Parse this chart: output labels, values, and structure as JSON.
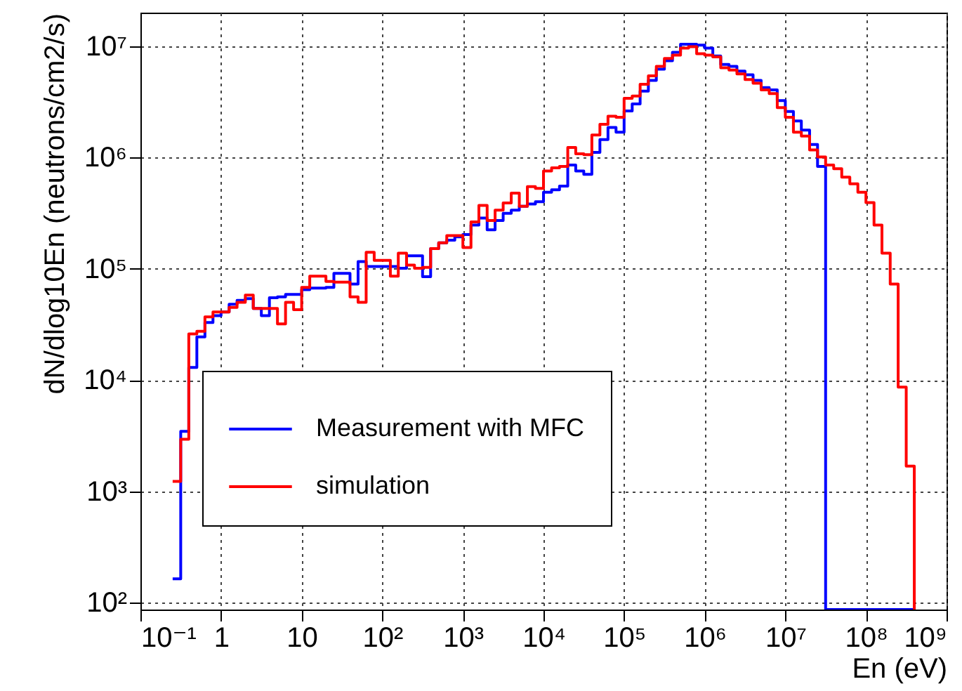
{
  "chart_data": {
    "type": "histogram",
    "xlabel": "En (eV)",
    "ylabel": "dN/dlog10En (neutrons/cm2/s)",
    "log": "xy",
    "grid": true,
    "legend": "bottom",
    "line_style": "solid",
    "xlim": [
      0.1,
      1000000000
    ],
    "ylim": [
      87,
      20000000
    ],
    "xticks": [
      {
        "value": 0.1,
        "label": "10⁻¹"
      },
      1,
      10,
      {
        "value": 100,
        "label": "10²"
      },
      {
        "value": 1000,
        "label": "10³"
      },
      {
        "value": 10000,
        "label": "10⁴"
      },
      {
        "value": 100000,
        "label": "10⁵"
      },
      {
        "value": 1000000,
        "label": "10⁶"
      },
      {
        "value": 10000000,
        "label": "10⁷"
      },
      {
        "value": 100000000,
        "label": "10⁸"
      },
      {
        "value": 1000000000,
        "label": "10⁹"
      }
    ],
    "yticks": [
      {
        "value": 100,
        "label": "10²"
      },
      {
        "value": 1000,
        "label": "10³"
      },
      {
        "value": 10000,
        "label": "10⁴"
      },
      {
        "value": 100000,
        "label": "10⁵"
      },
      {
        "value": 1000000,
        "label": "10⁶"
      },
      {
        "value": 10000000,
        "label": "10⁷"
      }
    ],
    "bins": [
      0.251,
      0.316,
      0.398,
      0.501,
      0.631,
      0.794,
      1,
      1.26,
      1.58,
      2,
      2.51,
      3.16,
      3.98,
      5.01,
      6.31,
      7.94,
      10,
      12.6,
      15.8,
      20,
      25.1,
      31.6,
      39.8,
      50.1,
      63.1,
      79.4,
      100,
      126,
      158,
      200,
      251,
      316,
      398,
      501,
      631,
      794,
      1000,
      1260,
      1580,
      2000,
      2510,
      3160,
      3980,
      5010,
      6310,
      7940,
      10000,
      12600,
      15800,
      20000,
      25100,
      31600,
      39800,
      50100,
      63100,
      79400,
      100000,
      126000,
      158000,
      200000,
      251000,
      316000,
      398000,
      501000,
      631000,
      794000,
      1000000,
      1260000,
      1580000,
      2000000,
      2510000,
      3160000,
      3980000,
      5010000,
      6310000,
      7940000,
      10000000,
      12600000,
      15800000,
      20000000,
      25100000,
      31600000,
      39800000,
      50100000,
      63100000,
      79400000,
      100000000,
      126000000,
      158000000,
      200000000,
      251000000,
      316000000,
      398000000
    ],
    "series": [
      {
        "name": "Measurement with MFC",
        "color": "#0000ff",
        "values": [
          164,
          3470,
          13000,
          24500,
          33000,
          38000,
          41000,
          48000,
          52000,
          54000,
          44000,
          38000,
          55000,
          56000,
          59000,
          59000,
          65000,
          67000,
          67000,
          68000,
          91000,
          91000,
          73000,
          116000,
          105000,
          105000,
          105000,
          105000,
          101000,
          131000,
          131000,
          85000,
          152000,
          171000,
          181000,
          194000,
          203000,
          247000,
          286000,
          224000,
          272000,
          315000,
          337000,
          364000,
          382000,
          401000,
          487000,
          512000,
          553000,
          855000,
          755000,
          705000,
          1110000,
          1450000,
          1860000,
          1690000,
          2620000,
          3030000,
          3940000,
          4920000,
          6210000,
          7400000,
          8810000,
          10400000,
          10400000,
          10200000,
          9600000,
          8150000,
          6840000,
          6580000,
          5970000,
          5530000,
          4920000,
          4250000,
          4050000,
          3240000,
          2590000,
          2130000,
          1760000,
          1310000,
          832000,
          null,
          null,
          null,
          null,
          null,
          null,
          null,
          null,
          null,
          null,
          null
        ]
      },
      {
        "name": "simulation",
        "color": "#ff0000",
        "values": [
          1230,
          2950,
          26000,
          27500,
          37000,
          41000,
          41000,
          45000,
          50000,
          58000,
          44000,
          44000,
          44000,
          32000,
          50000,
          43000,
          68000,
          86000,
          86000,
          77000,
          76000,
          76000,
          56000,
          50000,
          141000,
          119000,
          119000,
          86000,
          138000,
          108000,
          101000,
          103000,
          152000,
          171000,
          199000,
          199000,
          155000,
          264000,
          371000,
          272000,
          337000,
          390000,
          478000,
          364000,
          547000,
          527000,
          755000,
          808000,
          832000,
          1230000,
          1080000,
          1060000,
          1590000,
          1990000,
          2350000,
          2300000,
          3400000,
          3570000,
          4550000,
          5420000,
          6580000,
          7760000,
          8320000,
          9620000,
          9900000,
          8550000,
          8320000,
          8000000,
          6390000,
          6090000,
          5640000,
          5010000,
          4640000,
          4050000,
          3750000,
          2800000,
          2300000,
          1690000,
          1560000,
          1170000,
          1010000,
          855000,
          792000,
          665000,
          581000,
          487000,
          394000,
          247000,
          138000,
          73000,
          8650,
          1690
        ]
      }
    ]
  }
}
